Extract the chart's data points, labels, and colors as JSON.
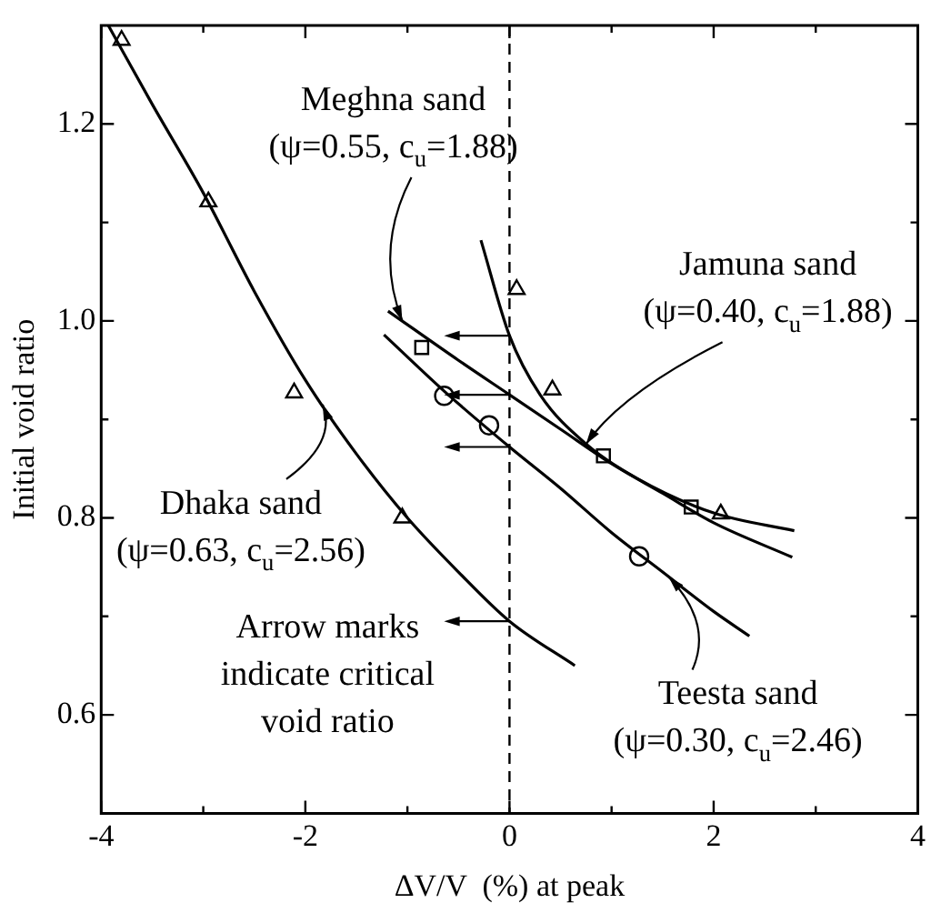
{
  "chart_data": {
    "type": "scatter",
    "xlabel": "ΔV/V  (%) at peak",
    "ylabel": "Initial void ratio",
    "xlim": [
      -4,
      4
    ],
    "ylim": [
      0.5,
      1.3
    ],
    "xticks": [
      -4,
      {
        "value": -3,
        "label": null
      },
      -2,
      {
        "value": -1,
        "label": null
      },
      0,
      {
        "value": 1,
        "label": null
      },
      2,
      {
        "value": 3,
        "label": null
      },
      4
    ],
    "yticks": [
      0.6,
      {
        "value": 0.7,
        "label": null
      },
      0.8,
      {
        "value": 0.9,
        "label": null
      },
      {
        "value": 1,
        "label": "1.0"
      },
      {
        "value": 1.1,
        "label": null
      },
      1.2
    ],
    "grid": false,
    "legend": false,
    "series": [
      {
        "type": "line",
        "color": "#000000",
        "marker": "none",
        "line_style": "solid",
        "x": [
          -3.93,
          -3.5,
          -3.0,
          -2.5,
          -2.0,
          -1.5,
          -1.0,
          -0.5,
          0,
          0.64
        ],
        "values": [
          1.3,
          1.22,
          1.13,
          1.03,
          0.94,
          0.865,
          0.8,
          0.745,
          0.695,
          0.65
        ]
      },
      {
        "type": "line",
        "color": "#000000",
        "marker": "none",
        "line_style": "solid",
        "x": [
          -1.19,
          -0.5,
          0,
          0.5,
          1.0,
          1.5,
          2.0,
          2.77
        ],
        "values": [
          1.01,
          0.96,
          0.925,
          0.89,
          0.855,
          0.825,
          0.795,
          0.76
        ]
      },
      {
        "type": "line",
        "color": "#000000",
        "marker": "none",
        "line_style": "solid",
        "x": [
          -1.23,
          -0.6,
          0,
          0.5,
          1.0,
          1.5,
          2.0,
          2.35
        ],
        "values": [
          0.986,
          0.925,
          0.872,
          0.83,
          0.785,
          0.745,
          0.705,
          0.68
        ]
      },
      {
        "type": "line",
        "color": "#000000",
        "marker": "none",
        "line_style": "solid",
        "x": [
          -0.28,
          0,
          0.3,
          0.75,
          1.25,
          2.0,
          2.79
        ],
        "values": [
          1.082,
          0.985,
          0.925,
          0.875,
          0.84,
          0.805,
          0.787
        ]
      },
      {
        "color": "#000000",
        "marker": "triangle",
        "x": [
          -3.8,
          -2.95,
          -2.11,
          -1.05
        ],
        "values": [
          1.285,
          1.121,
          0.927,
          0.8
        ]
      },
      {
        "color": "#000000",
        "marker": "square",
        "x": [
          -0.86,
          0.92,
          1.78
        ],
        "values": [
          0.973,
          0.863,
          0.811
        ]
      },
      {
        "color": "#000000",
        "marker": "circle",
        "x": [
          -0.64,
          -0.2,
          1.27
        ],
        "values": [
          0.924,
          0.894,
          0.761
        ]
      },
      {
        "color": "#000000",
        "marker": "triangle",
        "x": [
          0.07,
          0.42,
          2.07
        ],
        "values": [
          1.032,
          0.93,
          0.804
        ]
      }
    ],
    "ref_lines": [
      {
        "axis": "x",
        "value": 0,
        "line_style": "dashed",
        "color": "#000000"
      }
    ],
    "annotations": [
      {
        "text": "Meghna sand\n(ψ=0.55, c$_{u}$=1.88)",
        "x": -1.05,
        "y": 1.0
      },
      {
        "text": "Jamuna sand\n(ψ=0.40, c$_{u}$=1.88)",
        "x": 0.75,
        "y": 0.875
      },
      {
        "text": "Dhaka sand\n(ψ=0.63, c$_{u}$=2.56)",
        "x": -1.83,
        "y": 0.915
      },
      {
        "text": "Teesta sand\n(ψ=0.30, c$_{u}$=2.46)",
        "x": 1.56,
        "y": 0.74
      },
      {
        "text": "Arrow marks\nindicate critical\nvoid ratio",
        "x": 0,
        "y": 0.695
      }
    ]
  }
}
